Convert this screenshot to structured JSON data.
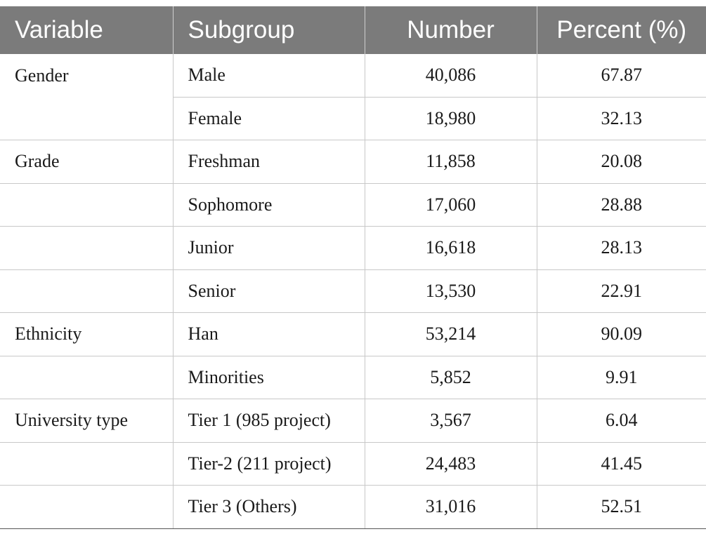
{
  "table": {
    "headers": {
      "variable": "Variable",
      "subgroup": "Subgroup",
      "number": "Number",
      "percent": "Percent (%)"
    },
    "rows": [
      {
        "variable": "Gender",
        "subgroup": "Male",
        "number": "40,086",
        "percent": "67.87"
      },
      {
        "variable": "",
        "subgroup": "Female",
        "number": "18,980",
        "percent": "32.13"
      },
      {
        "variable": "Grade",
        "subgroup": "Freshman",
        "number": "11,858",
        "percent": "20.08"
      },
      {
        "variable": "",
        "subgroup": "Sophomore",
        "number": "17,060",
        "percent": "28.88"
      },
      {
        "variable": "",
        "subgroup": "Junior",
        "number": "16,618",
        "percent": "28.13"
      },
      {
        "variable": "",
        "subgroup": "Senior",
        "number": "13,530",
        "percent": "22.91"
      },
      {
        "variable": "Ethnicity",
        "subgroup": "Han",
        "number": "53,214",
        "percent": "90.09"
      },
      {
        "variable": "",
        "subgroup": "Minorities",
        "number": "5,852",
        "percent": "9.91"
      },
      {
        "variable": "University type",
        "subgroup": "Tier 1 (985 project)",
        "number": "3,567",
        "percent": "6.04"
      },
      {
        "variable": "",
        "subgroup": "Tier-2 (211 project)",
        "number": "24,483",
        "percent": "41.45"
      },
      {
        "variable": "",
        "subgroup": "Tier 3 (Others)",
        "number": "31,016",
        "percent": "52.51"
      }
    ]
  },
  "colors": {
    "header_bg": "#7b7b7b",
    "header_text": "#ffffff",
    "grid_line": "#c8c8c8"
  }
}
